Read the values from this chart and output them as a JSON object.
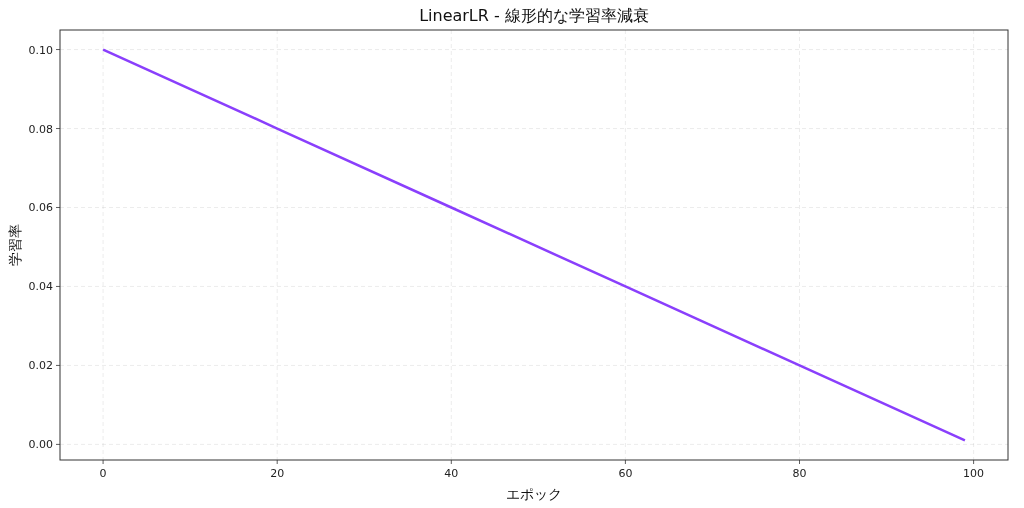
{
  "chart_data": {
    "type": "line",
    "title": "LinearLR - 線形的な学習率減衰",
    "xlabel": "エポック",
    "ylabel": "学習率",
    "x": [
      0,
      20,
      40,
      60,
      80,
      99
    ],
    "series": [
      {
        "color": "#8a3ffc",
        "values": [
          0.1,
          0.08,
          0.06,
          0.04,
          0.02,
          0.001
        ]
      }
    ],
    "xlim": [
      -4.95,
      103.95
    ],
    "ylim": [
      -0.00395,
      0.10495
    ],
    "xticks": [
      0,
      20,
      40,
      60,
      80,
      100
    ],
    "yticks": [
      {
        "value": 0,
        "label": "0.00"
      },
      {
        "value": 0.02,
        "label": "0.02"
      },
      {
        "value": 0.04,
        "label": "0.04"
      },
      {
        "value": 0.06,
        "label": "0.06"
      },
      {
        "value": 0.08,
        "label": "0.08"
      },
      {
        "value": 0.1,
        "label": "0.10"
      }
    ],
    "grid": true,
    "line_style": "solid"
  }
}
